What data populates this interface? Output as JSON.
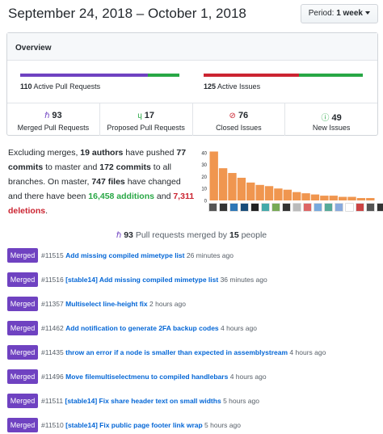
{
  "header": {
    "date_range": "September 24, 2018 – October 1, 2018",
    "period_prefix": "Period:",
    "period_value": "1 week"
  },
  "overview": {
    "title": "Overview",
    "pull_requests": {
      "count": "110",
      "label": "Active Pull Requests",
      "merged_fraction": 0.8,
      "colors": [
        "#6f42c1",
        "#28a745"
      ]
    },
    "issues": {
      "count": "125",
      "label": "Active Issues",
      "closed_fraction": 0.6,
      "colors": [
        "#cb2431",
        "#28a745"
      ]
    },
    "stats": [
      {
        "icon": "merge-icon",
        "glyph": "ℏ",
        "color": "#6f42c1",
        "value": "93",
        "label": "Merged Pull Requests"
      },
      {
        "icon": "pull-request-icon",
        "glyph": "ɥ",
        "color": "#28a745",
        "value": "17",
        "label": "Proposed Pull Requests"
      },
      {
        "icon": "issue-closed-icon",
        "glyph": "⊘",
        "color": "#cb2431",
        "value": "76",
        "label": "Closed Issues"
      },
      {
        "icon": "issue-opened-icon",
        "glyph": "ⓘ",
        "color": "#28a745",
        "value": "49",
        "label": "New Issues"
      }
    ]
  },
  "summary": {
    "p1": "Excluding merges,",
    "authors": "19 authors",
    "p2": "have pushed",
    "commits_master": "77 commits",
    "p3": "to master and",
    "commits_all": "172 commits",
    "p4": "to all branches. On master,",
    "files": "747 files",
    "p5": "have changed and there have been",
    "additions": "16,458 additions",
    "p6": "and",
    "deletions": "7,311 deletions",
    "p7": "."
  },
  "chart_data": {
    "type": "bar",
    "values": [
      41,
      27,
      23,
      19,
      15,
      13,
      12,
      10,
      9,
      7,
      6,
      5,
      4,
      4,
      3,
      3,
      2,
      2
    ],
    "ylim": [
      0,
      40
    ],
    "yticks": [
      "0",
      "10",
      "20",
      "30",
      "40"
    ],
    "color": "#f0964f",
    "avatar_colors": [
      "#555",
      "#333",
      "#2e77b6",
      "#1a4d7a",
      "#222",
      "#4aa",
      "#7a5",
      "#333",
      "#bbb",
      "#d66",
      "#7ad",
      "#5a9",
      "#8ad",
      "#fff",
      "#c44",
      "#555",
      "#333",
      "#2e77b6"
    ]
  },
  "merged": {
    "count": "93",
    "middle": "Pull requests merged by",
    "people": "15",
    "suffix": "people"
  },
  "pull_requests": [
    {
      "badge": "Merged",
      "number": "#11515",
      "title": "Add missing compiled mimetype list",
      "time": "26 minutes ago"
    },
    {
      "badge": "Merged",
      "number": "#11516",
      "title": "[stable14] Add missing compiled mimetype list",
      "time": "36 minutes ago"
    },
    {
      "badge": "Merged",
      "number": "#11357",
      "title": "Multiselect line-height fix",
      "time": "2 hours ago"
    },
    {
      "badge": "Merged",
      "number": "#11462",
      "title": "Add notification to generate 2FA backup codes",
      "time": "4 hours ago"
    },
    {
      "badge": "Merged",
      "number": "#11435",
      "title": "throw an error if a node is smaller than expected in assemblystream",
      "time": "4 hours ago"
    },
    {
      "badge": "Merged",
      "number": "#11496",
      "title": "Move filemultiselectmenu to compiled handlebars",
      "time": "4 hours ago"
    },
    {
      "badge": "Merged",
      "number": "#11511",
      "title": "[stable14] Fix share header text on small widths",
      "time": "5 hours ago"
    },
    {
      "badge": "Merged",
      "number": "#11510",
      "title": "[stable14] Fix public page footer link wrap",
      "time": "5 hours ago"
    }
  ]
}
